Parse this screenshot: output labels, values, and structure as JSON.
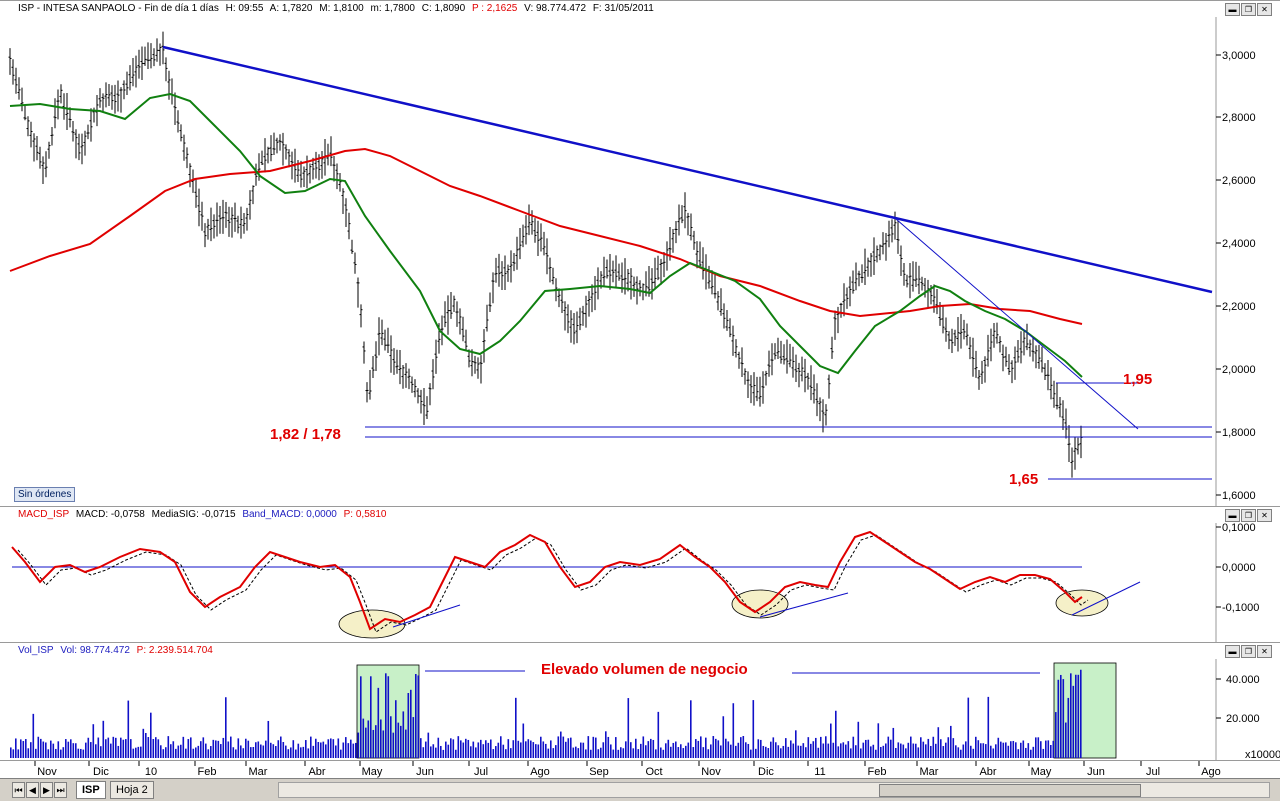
{
  "price_panel": {
    "header": {
      "symbol": "ISP - INTESA SANPAOLO - Fin de día 1 días",
      "high": "H: 09:55",
      "open": "A: 1,7820",
      "max": "M: 1,8100",
      "min": "m: 1,7800",
      "close": "C: 1,8090",
      "p": "P : 2,1625",
      "volume": "V: 98.774.472",
      "date": "F: 31/05/2011"
    },
    "y_ticks": [
      "3,0000",
      "2,8000",
      "2,6000",
      "2,4000",
      "2,2000",
      "2,0000",
      "1,8000",
      "1,6000"
    ],
    "annotations": {
      "support": "1,82 / 1,78",
      "resistance": "1,95",
      "low": "1,65"
    },
    "no_orders_label": "Sin órdenes",
    "colors": {
      "candles": "#000000",
      "ma_long": "#e00000",
      "ma_short": "#108010",
      "trendline": "#1010c8",
      "level": "#1010c8"
    }
  },
  "macd_panel": {
    "header": {
      "name": "MACD_ISP",
      "macd": "MACD: -0,0758",
      "signal": "MediaSIG: -0,0715",
      "band": "Band_MACD: 0,0000",
      "p": "P: 0,5810"
    },
    "y_ticks": [
      "0,1000",
      "0,0000",
      "-0,1000"
    ],
    "colors": {
      "macd": "#e00000",
      "signal": "#000000",
      "zero": "#1010c8",
      "ellipse": "#f5f0c8"
    }
  },
  "volume_panel": {
    "header": {
      "name": "Vol_ISP",
      "vol": "Vol: 98.774.472",
      "p": "P: 2.239.514.704"
    },
    "y_ticks": [
      "40.000",
      "20.000"
    ],
    "multiplier": "x10000",
    "annotation": "Elevado volumen de negocio",
    "colors": {
      "bars": "#1010c8",
      "highlight": "#c8f0c8"
    }
  },
  "x_axis": {
    "months": [
      "Nov",
      "Dic",
      "10",
      "Feb",
      "Mar",
      "Abr",
      "May",
      "Jun",
      "Jul",
      "Ago",
      "Sep",
      "Oct",
      "Nov",
      "Dic",
      "11",
      "Feb",
      "Mar",
      "Abr",
      "May",
      "Jun",
      "Jul",
      "Ago"
    ]
  },
  "sheets": {
    "active": "ISP",
    "other": "Hoja 2"
  },
  "window_buttons": {
    "minimize": "▬",
    "restore": "❐",
    "close": "✕"
  }
}
